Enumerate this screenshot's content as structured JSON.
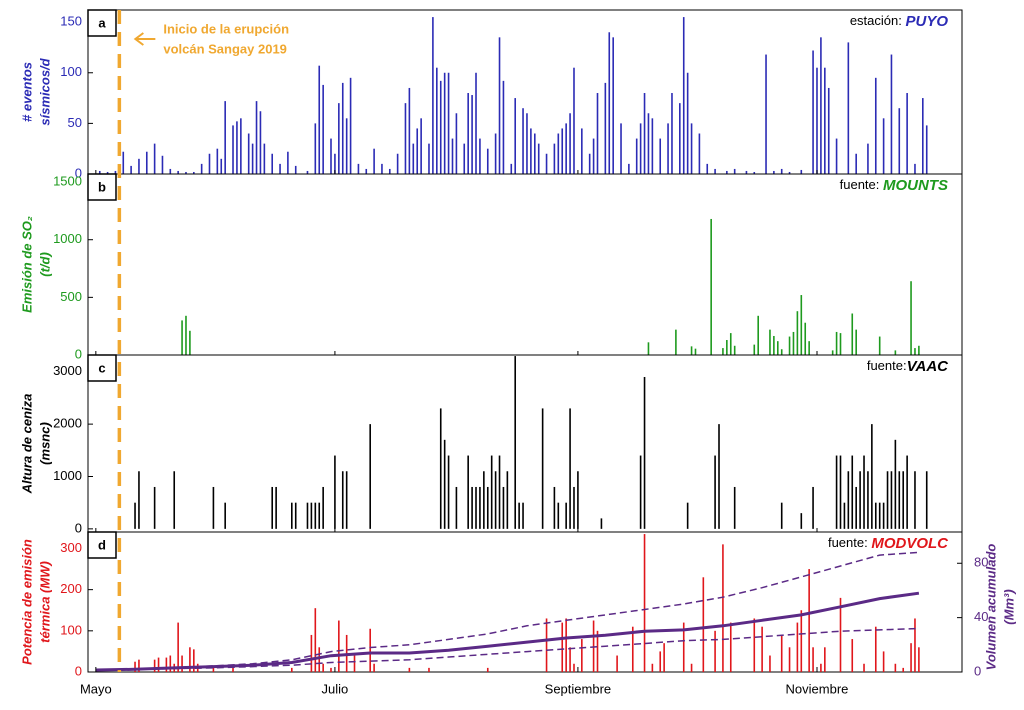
{
  "chart_data": [
    {
      "type": "bar",
      "panel": "a",
      "source": [
        "estación: ",
        "PUYO"
      ],
      "ylabel": [
        "# eventos",
        "sísmicos/d"
      ],
      "color": "#2b2bb5",
      "annotation": {
        "text": [
          "Inicio de la erupción",
          "volcán Sangay 2019"
        ],
        "x": 6,
        "color": "#f0a830"
      },
      "xlim": [
        -2,
        221
      ],
      "ylim": [
        0,
        162
      ],
      "yticks": [
        0,
        50,
        100,
        150
      ],
      "x": [
        1,
        3,
        5,
        7,
        9,
        11,
        13,
        15,
        17,
        19,
        21,
        23,
        25,
        27,
        29,
        31,
        32,
        33,
        35,
        36,
        37,
        39,
        40,
        41,
        42,
        43,
        45,
        47,
        49,
        51,
        54,
        56,
        57,
        58,
        60,
        61,
        62,
        63,
        64,
        65,
        67,
        69,
        71,
        73,
        75,
        77,
        79,
        80,
        81,
        82,
        83,
        85,
        86,
        87,
        88,
        89,
        90,
        91,
        92,
        94,
        95,
        96,
        97,
        98,
        100,
        102,
        103,
        104,
        106,
        107,
        109,
        110,
        111,
        112,
        113,
        115,
        117,
        118,
        119,
        120,
        121,
        122,
        124,
        126,
        127,
        128,
        130,
        131,
        132,
        134,
        136,
        138,
        139,
        140,
        141,
        142,
        144,
        146,
        147,
        149,
        150,
        151,
        152,
        154,
        156,
        158,
        161,
        163,
        166,
        168,
        171,
        173,
        175,
        177,
        180,
        183,
        184,
        185,
        186,
        187,
        189,
        192,
        194,
        197,
        199,
        201,
        203,
        205,
        207,
        209,
        211,
        212
      ],
      "values": [
        3,
        2,
        3,
        22,
        8,
        15,
        22,
        30,
        18,
        5,
        3,
        2,
        2,
        10,
        20,
        25,
        15,
        72,
        48,
        52,
        55,
        40,
        30,
        72,
        62,
        30,
        20,
        10,
        22,
        8,
        3,
        50,
        107,
        88,
        35,
        20,
        70,
        90,
        55,
        95,
        10,
        5,
        25,
        10,
        5,
        20,
        70,
        85,
        30,
        45,
        55,
        30,
        155,
        105,
        92,
        100,
        100,
        35,
        60,
        30,
        80,
        78,
        100,
        35,
        25,
        40,
        135,
        92,
        10,
        75,
        65,
        60,
        45,
        40,
        30,
        20,
        30,
        40,
        45,
        50,
        60,
        105,
        45,
        20,
        35,
        80,
        90,
        140,
        135,
        50,
        10,
        35,
        50,
        80,
        60,
        55,
        35,
        50,
        80,
        70,
        155,
        100,
        50,
        40,
        10,
        5,
        3,
        5,
        3,
        2,
        118,
        3,
        5,
        2,
        4,
        122,
        105,
        135,
        105,
        85,
        35,
        130,
        20,
        30,
        95,
        55,
        118,
        65,
        80,
        10,
        75,
        48
      ]
    },
    {
      "type": "bar",
      "panel": "b",
      "source": [
        "fuente: ",
        "MOUNTS"
      ],
      "ylabel": [
        "Emisión de SO₂",
        "(t/d)"
      ],
      "color": "#1e9a1e",
      "xlim": [
        -2,
        221
      ],
      "ylim": [
        0,
        1570
      ],
      "yticks": [
        0,
        500,
        1000,
        1500
      ],
      "x": [
        22,
        23,
        24,
        141,
        148,
        152,
        153,
        157,
        160,
        161,
        162,
        163,
        168,
        169,
        172,
        173,
        174,
        175,
        177,
        178,
        179,
        180,
        181,
        182,
        188,
        189,
        190,
        193,
        194,
        200,
        204,
        208,
        209,
        210
      ],
      "values": [
        300,
        340,
        210,
        110,
        220,
        75,
        55,
        1180,
        60,
        130,
        190,
        80,
        90,
        340,
        220,
        165,
        120,
        50,
        160,
        200,
        380,
        520,
        280,
        120,
        40,
        200,
        190,
        360,
        220,
        160,
        40,
        640,
        60,
        80
      ]
    },
    {
      "type": "bar",
      "panel": "c",
      "source": [
        "fuente:",
        "VAAC"
      ],
      "ylabel": [
        "Altura de ceniza",
        "(msnc)"
      ],
      "color": "#000000",
      "xlim": [
        -2,
        221
      ],
      "ylim": [
        -60,
        3320
      ],
      "yticks": [
        0,
        1000,
        2000,
        3000
      ],
      "x": [
        10,
        11,
        15,
        20,
        30,
        33,
        45,
        46,
        50,
        51,
        54,
        55,
        56,
        57,
        58,
        61,
        63,
        64,
        70,
        88,
        89,
        90,
        92,
        95,
        96,
        97,
        98,
        99,
        100,
        101,
        102,
        103,
        104,
        105,
        107,
        108,
        109,
        114,
        117,
        118,
        120,
        121,
        122,
        123,
        129,
        139,
        140,
        151,
        158,
        159,
        163,
        175,
        180,
        183,
        189,
        190,
        191,
        192,
        193,
        194,
        195,
        196,
        197,
        198,
        199,
        200,
        201,
        202,
        203,
        204,
        205,
        206,
        207,
        209,
        212
      ],
      "values": [
        500,
        1100,
        800,
        1100,
        800,
        500,
        800,
        800,
        500,
        500,
        500,
        500,
        500,
        500,
        800,
        1400,
        1100,
        1100,
        2000,
        2300,
        1700,
        1400,
        800,
        1400,
        800,
        800,
        800,
        1100,
        800,
        1400,
        1100,
        1400,
        800,
        1100,
        3300,
        500,
        500,
        2300,
        800,
        500,
        500,
        2300,
        800,
        1100,
        200,
        1400,
        2900,
        500,
        1400,
        2000,
        800,
        500,
        300,
        800,
        1400,
        1400,
        500,
        1100,
        1400,
        800,
        1100,
        1400,
        1100,
        2000,
        500,
        500,
        500,
        1100,
        1100,
        1700,
        1100,
        1100,
        1400,
        1100,
        1100
      ]
    },
    {
      "type": "bar",
      "panel": "d",
      "source": [
        "fuente: ",
        "MODVOLC"
      ],
      "ylabel": [
        "Potencia de emisión",
        "térmica (MW)"
      ],
      "color": "#e0161b",
      "y2label": [
        "Volumen acumulado",
        "(Mm³)"
      ],
      "y2color": "#5b2a86",
      "xlim": [
        -2,
        221
      ],
      "ylim": [
        0,
        340
      ],
      "yticks": [
        0,
        100,
        200,
        300
      ],
      "y2lim": [
        0,
        103
      ],
      "y2ticks": [
        0,
        40,
        80
      ],
      "xticks": [
        {
          "value": 0,
          "label": "Mayo"
        },
        {
          "value": 61,
          "label": "Julio"
        },
        {
          "value": 123,
          "label": "Septiembre"
        },
        {
          "value": 184,
          "label": "Noviembre"
        }
      ],
      "x": [
        10,
        11,
        15,
        16,
        18,
        19,
        20,
        21,
        22,
        24,
        25,
        26,
        30,
        35,
        50,
        55,
        56,
        57,
        58,
        60,
        62,
        64,
        66,
        70,
        71,
        80,
        85,
        100,
        115,
        119,
        120,
        121,
        122,
        124,
        127,
        128,
        133,
        137,
        140,
        142,
        144,
        145,
        150,
        152,
        155,
        158,
        160,
        162,
        168,
        170,
        172,
        175,
        177,
        179,
        180,
        182,
        183,
        185,
        186,
        190,
        193,
        196,
        199,
        201,
        204,
        206,
        208,
        209,
        210
      ],
      "values": [
        25,
        30,
        30,
        35,
        35,
        40,
        20,
        120,
        40,
        60,
        55,
        20,
        10,
        10,
        10,
        90,
        155,
        60,
        20,
        10,
        125,
        90,
        40,
        105,
        20,
        10,
        10,
        10,
        130,
        120,
        130,
        60,
        20,
        80,
        125,
        100,
        40,
        110,
        335,
        20,
        50,
        70,
        120,
        20,
        230,
        100,
        310,
        120,
        130,
        110,
        40,
        90,
        60,
        120,
        150,
        250,
        60,
        20,
        60,
        180,
        80,
        20,
        110,
        50,
        20,
        10,
        70,
        130,
        60
      ],
      "series": [
        {
          "axis": "y2",
          "color": "#5b2a86",
          "dash": false,
          "x": [
            0,
            10,
            20,
            30,
            40,
            50,
            60,
            70,
            80,
            90,
            100,
            110,
            120,
            130,
            140,
            150,
            160,
            170,
            180,
            190,
            200,
            210
          ],
          "values": [
            1.5,
            2,
            3,
            4,
            5,
            7,
            12,
            14,
            14,
            16,
            19,
            22,
            25,
            27,
            30,
            31,
            34,
            38,
            42,
            48,
            54,
            58
          ]
        },
        {
          "axis": "y2",
          "color": "#5b2a86",
          "dash": true,
          "x": [
            0,
            10,
            20,
            30,
            40,
            50,
            60,
            70,
            80,
            90,
            100,
            110,
            120,
            130,
            140,
            150,
            160,
            170,
            180,
            190,
            200,
            210
          ],
          "values": [
            1.5,
            2,
            3,
            4.5,
            6,
            9,
            15,
            18,
            20,
            24,
            28,
            34,
            38,
            42,
            46,
            50,
            55,
            62,
            70,
            78,
            86,
            88
          ]
        },
        {
          "axis": "y2",
          "color": "#5b2a86",
          "dash": true,
          "x": [
            0,
            10,
            20,
            30,
            40,
            50,
            60,
            70,
            80,
            90,
            100,
            110,
            120,
            130,
            140,
            150,
            160,
            170,
            180,
            190,
            200,
            210
          ],
          "values": [
            1.5,
            2,
            2.5,
            3,
            4,
            5,
            7,
            8,
            9,
            11,
            13,
            15,
            17,
            19,
            21,
            23,
            24,
            26,
            28,
            30,
            31,
            32
          ]
        }
      ]
    }
  ]
}
